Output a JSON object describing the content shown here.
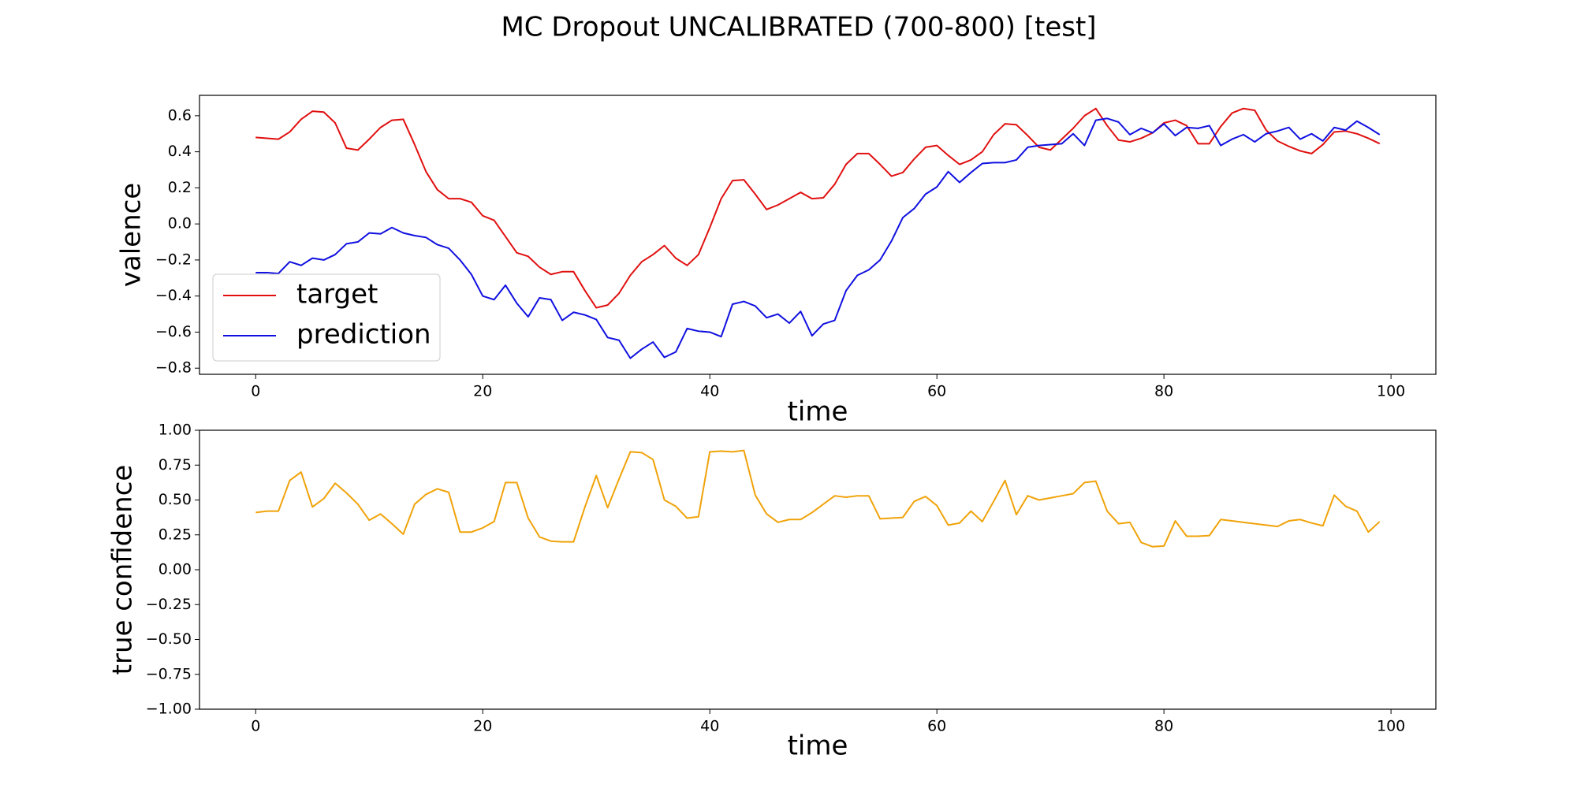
{
  "title": "MC Dropout UNCALIBRATED (700-800) [test]",
  "chart_data": [
    {
      "type": "line",
      "xlabel": "time",
      "ylabel": "valence",
      "x": [
        0,
        1,
        2,
        3,
        4,
        5,
        6,
        7,
        8,
        9,
        10,
        11,
        12,
        13,
        14,
        15,
        16,
        17,
        18,
        19,
        20,
        21,
        22,
        23,
        24,
        25,
        26,
        27,
        28,
        29,
        30,
        31,
        32,
        33,
        34,
        35,
        36,
        37,
        38,
        39,
        40,
        41,
        42,
        43,
        44,
        45,
        46,
        47,
        48,
        49,
        50,
        51,
        52,
        53,
        54,
        55,
        56,
        57,
        58,
        59,
        60,
        61,
        62,
        63,
        64,
        65,
        66,
        67,
        68,
        69,
        70,
        71,
        72,
        73,
        74,
        75,
        76,
        77,
        78,
        79,
        80,
        81,
        82,
        83,
        84,
        85,
        86,
        87,
        88,
        89,
        90,
        91,
        92,
        93,
        94,
        95,
        96,
        97,
        98,
        99
      ],
      "series": [
        {
          "name": "target",
          "color": "#e01010",
          "values": [
            0.48,
            0.475,
            0.47,
            0.51,
            0.58,
            0.625,
            0.62,
            0.56,
            0.42,
            0.41,
            0.47,
            0.535,
            0.575,
            0.58,
            0.44,
            0.29,
            0.19,
            0.14,
            0.14,
            0.12,
            0.045,
            0.02,
            -0.07,
            -0.16,
            -0.18,
            -0.24,
            -0.28,
            -0.265,
            -0.265,
            -0.37,
            -0.465,
            -0.45,
            -0.385,
            -0.285,
            -0.21,
            -0.17,
            -0.12,
            -0.19,
            -0.23,
            -0.17,
            -0.02,
            0.14,
            0.24,
            0.245,
            0.165,
            0.08,
            0.105,
            0.14,
            0.175,
            0.14,
            0.145,
            0.22,
            0.33,
            0.39,
            0.39,
            0.33,
            0.265,
            0.285,
            0.36,
            0.425,
            0.435,
            0.38,
            0.33,
            0.355,
            0.4,
            0.495,
            0.555,
            0.55,
            0.49,
            0.425,
            0.41,
            0.47,
            0.53,
            0.6,
            0.64,
            0.545,
            0.465,
            0.455,
            0.475,
            0.505,
            0.56,
            0.575,
            0.545,
            0.445,
            0.445,
            0.54,
            0.615,
            0.64,
            0.63,
            0.52,
            0.46,
            0.43,
            0.405,
            0.39,
            0.44,
            0.51,
            0.515,
            0.5,
            0.475,
            0.445
          ]
        },
        {
          "name": "prediction",
          "color": "#1010e0",
          "values": [
            -0.27,
            -0.27,
            -0.275,
            -0.21,
            -0.23,
            -0.19,
            -0.2,
            -0.17,
            -0.11,
            -0.1,
            -0.05,
            -0.055,
            -0.02,
            -0.05,
            -0.065,
            -0.075,
            -0.115,
            -0.135,
            -0.2,
            -0.28,
            -0.4,
            -0.42,
            -0.34,
            -0.44,
            -0.515,
            -0.41,
            -0.42,
            -0.535,
            -0.49,
            -0.505,
            -0.53,
            -0.63,
            -0.645,
            -0.745,
            -0.695,
            -0.655,
            -0.74,
            -0.71,
            -0.58,
            -0.595,
            -0.6,
            -0.625,
            -0.445,
            -0.43,
            -0.455,
            -0.52,
            -0.5,
            -0.55,
            -0.485,
            -0.62,
            -0.555,
            -0.535,
            -0.37,
            -0.285,
            -0.255,
            -0.2,
            -0.095,
            0.035,
            0.085,
            0.165,
            0.205,
            0.29,
            0.23,
            0.285,
            0.335,
            0.34,
            0.34,
            0.355,
            0.425,
            0.435,
            0.44,
            0.445,
            0.5,
            0.435,
            0.575,
            0.585,
            0.565,
            0.495,
            0.53,
            0.505,
            0.555,
            0.49,
            0.535,
            0.53,
            0.545,
            0.435,
            0.47,
            0.495,
            0.455,
            0.5,
            0.515,
            0.535,
            0.47,
            0.5,
            0.46,
            0.535,
            0.52,
            0.57,
            0.535,
            0.495
          ]
        }
      ],
      "xlim": [
        -4.95,
        103.95
      ],
      "ylim": [
        -0.834,
        0.713
      ],
      "xticks": [
        0,
        20,
        40,
        60,
        80,
        100
      ],
      "yticks": [
        {
          "value": -0.8,
          "label": "−0.8"
        },
        {
          "value": -0.6,
          "label": "−0.6"
        },
        {
          "value": -0.4,
          "label": "−0.4"
        },
        {
          "value": -0.2,
          "label": "−0.2"
        },
        {
          "value": 0,
          "label": "0.0"
        },
        {
          "value": 0.2,
          "label": "0.2"
        },
        {
          "value": 0.4,
          "label": "0.4"
        },
        {
          "value": 0.6,
          "label": "0.6"
        }
      ],
      "legend": "lower left"
    },
    {
      "type": "line",
      "xlabel": "time",
      "ylabel": "true confidence",
      "x": [
        0,
        1,
        2,
        3,
        4,
        5,
        6,
        7,
        8,
        9,
        10,
        11,
        12,
        13,
        14,
        15,
        16,
        17,
        18,
        19,
        20,
        21,
        22,
        23,
        24,
        25,
        26,
        27,
        28,
        29,
        30,
        31,
        32,
        33,
        34,
        35,
        36,
        37,
        38,
        39,
        40,
        41,
        42,
        43,
        44,
        45,
        46,
        47,
        48,
        49,
        50,
        51,
        52,
        53,
        54,
        55,
        56,
        57,
        58,
        59,
        60,
        61,
        62,
        63,
        64,
        65,
        66,
        67,
        68,
        69,
        70,
        71,
        72,
        73,
        74,
        75,
        76,
        77,
        78,
        79,
        80,
        81,
        82,
        83,
        84,
        85,
        86,
        87,
        88,
        89,
        90,
        91,
        92,
        93,
        94,
        95,
        96,
        97,
        98,
        99
      ],
      "series": [
        {
          "color": "#f0a30a",
          "values": [
            0.41,
            0.42,
            0.42,
            0.64,
            0.7,
            0.45,
            0.51,
            0.62,
            0.55,
            0.47,
            0.355,
            0.4,
            0.33,
            0.255,
            0.47,
            0.54,
            0.58,
            0.555,
            0.27,
            0.27,
            0.3,
            0.345,
            0.625,
            0.625,
            0.37,
            0.235,
            0.205,
            0.2,
            0.2,
            0.45,
            0.675,
            0.445,
            0.65,
            0.845,
            0.84,
            0.79,
            0.5,
            0.455,
            0.37,
            0.38,
            0.845,
            0.85,
            0.845,
            0.855,
            0.535,
            0.4,
            0.34,
            0.36,
            0.36,
            0.41,
            0.47,
            0.53,
            0.52,
            0.53,
            0.53,
            0.365,
            0.37,
            0.375,
            0.49,
            0.525,
            0.46,
            0.32,
            0.335,
            0.42,
            0.345,
            0.49,
            0.64,
            0.395,
            0.53,
            0.5,
            0.515,
            0.53,
            0.545,
            0.625,
            0.635,
            0.42,
            0.33,
            0.34,
            0.195,
            0.165,
            0.17,
            0.35,
            0.24,
            0.24,
            0.245,
            0.36,
            0.35,
            0.34,
            0.33,
            0.32,
            0.31,
            0.35,
            0.36,
            0.335,
            0.315,
            0.535,
            0.455,
            0.42,
            0.27,
            0.345
          ]
        }
      ],
      "xlim": [
        -4.95,
        103.95
      ],
      "ylim": [
        -1,
        1
      ],
      "xticks": [
        0,
        20,
        40,
        60,
        80,
        100
      ],
      "yticks": [
        {
          "value": -1,
          "label": "−1.00"
        },
        {
          "value": -0.75,
          "label": "−0.75"
        },
        {
          "value": -0.5,
          "label": "−0.50"
        },
        {
          "value": -0.25,
          "label": "−0.25"
        },
        {
          "value": 0,
          "label": "0.00"
        },
        {
          "value": 0.25,
          "label": "0.25"
        },
        {
          "value": 0.5,
          "label": "0.50"
        },
        {
          "value": 0.75,
          "label": "0.75"
        },
        {
          "value": 1,
          "label": "1.00"
        }
      ]
    }
  ]
}
